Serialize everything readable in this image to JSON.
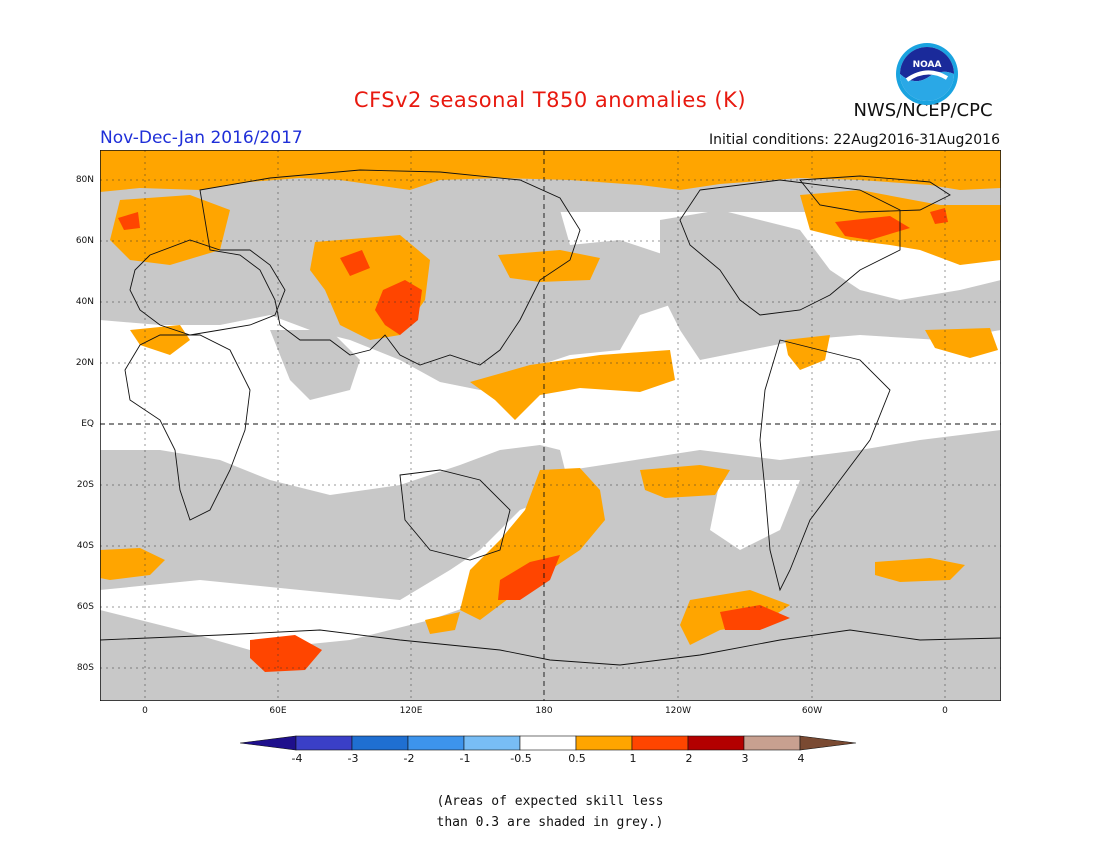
{
  "header": {
    "title": "CFSv2 seasonal T850 anomalies (K)",
    "season": "Nov-Dec-Jan 2016/2017",
    "initial_conditions": "Initial conditions: 22Aug2016-31Aug2016",
    "agency": "NWS/NCEP/CPC",
    "logo_text": "NOAA"
  },
  "map": {
    "lat_labels": [
      "80N",
      "60N",
      "40N",
      "20N",
      "EQ",
      "20S",
      "40S",
      "60S",
      "80S"
    ],
    "lon_labels": [
      "0",
      "60E",
      "120E",
      "180",
      "120W",
      "60W",
      "0"
    ]
  },
  "colorbar": {
    "labels": [
      "-4",
      "-3",
      "-2",
      "-1",
      "-0.5",
      "0.5",
      "1",
      "2",
      "3",
      "4"
    ],
    "colors": [
      "#1e0f8c",
      "#3a3fc7",
      "#1f6fd1",
      "#3d94ec",
      "#78bdf5",
      "#ffffff",
      "#ffa500",
      "#ff4500",
      "#b30000",
      "#c8a090",
      "#7a4a32"
    ]
  },
  "note": {
    "line1": "(Areas of expected skill less",
    "line2": "than 0.3 are shaded in grey.)"
  },
  "colors": {
    "grey_skill": "#c8c8c8",
    "orange": "#ffa500",
    "red": "#ff4500",
    "title": "#e8190f",
    "season": "#1f2fd8"
  }
}
